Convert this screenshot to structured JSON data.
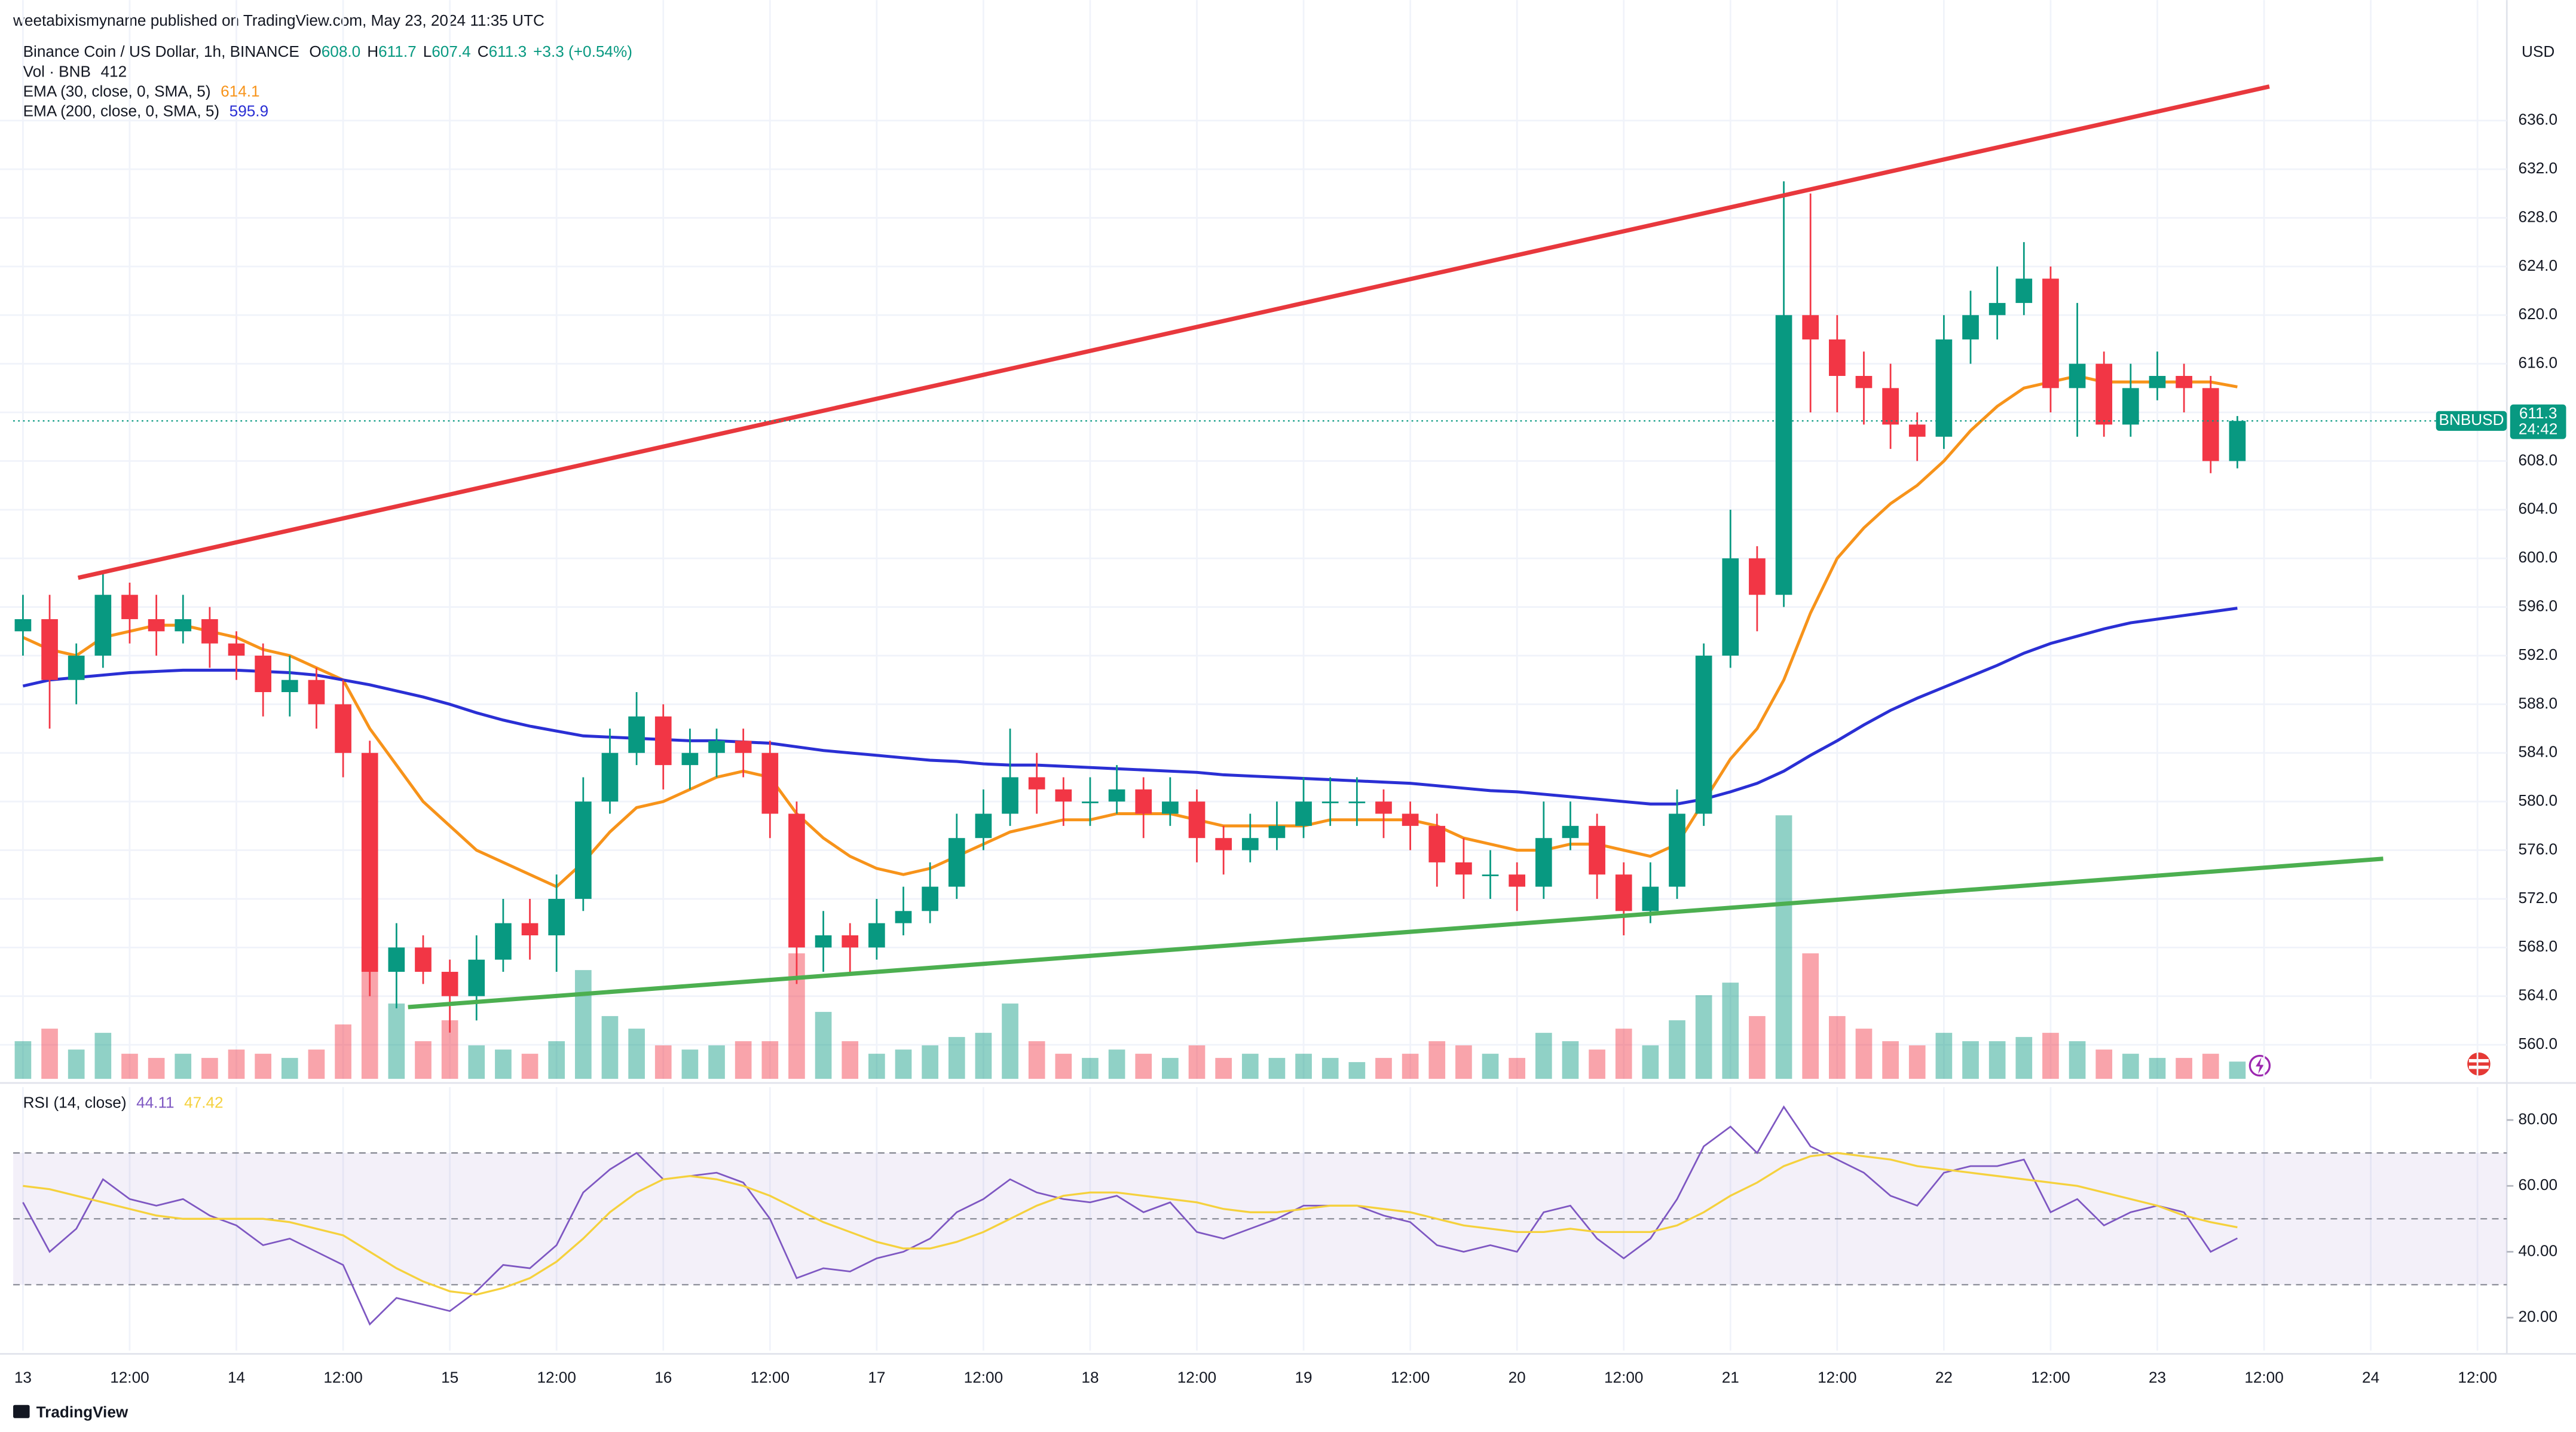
{
  "header": {
    "publisher": "weetabixismyname published on TradingView.com, May 23, 2024 11:35 UTC",
    "brand": "TradingView"
  },
  "chart_data": [
    {
      "type": "candlestick",
      "title": "Binance Coin / US Dollar, 1h, BINANCE",
      "ohlc": [
        {
          "label": "O",
          "value": "608.0"
        },
        {
          "label": "H",
          "value": "611.7"
        },
        {
          "label": "L",
          "value": "607.4"
        },
        {
          "label": "C",
          "value": "611.3"
        }
      ],
      "change": "+3.3 (+0.54%)",
      "y_axis_label": "USD",
      "grid": true,
      "up_color": "#089981",
      "down_color": "#f23645",
      "xlim": [
        -1.1,
        279.3
      ],
      "xticks": [
        {
          "value": 0,
          "label": "13"
        },
        {
          "value": 12,
          "label": "12:00"
        },
        {
          "value": 24,
          "label": "14"
        },
        {
          "value": 36,
          "label": "12:00"
        },
        {
          "value": 48,
          "label": "15"
        },
        {
          "value": 60,
          "label": "12:00"
        },
        {
          "value": 72,
          "label": "16"
        },
        {
          "value": 84,
          "label": "12:00"
        },
        {
          "value": 96,
          "label": "17"
        },
        {
          "value": 108,
          "label": "12:00"
        },
        {
          "value": 120,
          "label": "18"
        },
        {
          "value": 132,
          "label": "12:00"
        },
        {
          "value": 144,
          "label": "19"
        },
        {
          "value": 156,
          "label": "12:00"
        },
        {
          "value": 168,
          "label": "20"
        },
        {
          "value": 180,
          "label": "12:00"
        },
        {
          "value": 192,
          "label": "21"
        },
        {
          "value": 204,
          "label": "12:00"
        },
        {
          "value": 216,
          "label": "22"
        },
        {
          "value": 228,
          "label": "12:00"
        },
        {
          "value": 240,
          "label": "23"
        },
        {
          "value": 252,
          "label": "12:00"
        },
        {
          "value": 264,
          "label": "24"
        },
        {
          "value": 276,
          "label": "12:00"
        }
      ],
      "ylim": [
        557.2,
        643.2
      ],
      "yticks": [
        {
          "value": 560,
          "label": "560.0"
        },
        {
          "value": 564,
          "label": "564.0"
        },
        {
          "value": 568,
          "label": "568.0"
        },
        {
          "value": 572,
          "label": "572.0"
        },
        {
          "value": 576,
          "label": "576.0"
        },
        {
          "value": 580,
          "label": "580.0"
        },
        {
          "value": 584,
          "label": "584.0"
        },
        {
          "value": 588,
          "label": "588.0"
        },
        {
          "value": 592,
          "label": "592.0"
        },
        {
          "value": 596,
          "label": "596.0"
        },
        {
          "value": 600,
          "label": "600.0"
        },
        {
          "value": 604,
          "label": "604.0"
        },
        {
          "value": 608,
          "label": "608.0"
        },
        {
          "value": 612,
          "label": "612.0"
        },
        {
          "value": 616,
          "label": "616.0"
        },
        {
          "value": 620,
          "label": "620.0"
        },
        {
          "value": 624,
          "label": "624.0"
        },
        {
          "value": 628,
          "label": "628.0"
        },
        {
          "value": 632,
          "label": "632.0"
        },
        {
          "value": 636,
          "label": "636.0"
        }
      ],
      "x": [
        0,
        3,
        6,
        9,
        12,
        15,
        18,
        21,
        24,
        27,
        30,
        33,
        36,
        39,
        42,
        45,
        48,
        51,
        54,
        57,
        60,
        63,
        66,
        69,
        72,
        75,
        78,
        81,
        84,
        87,
        90,
        93,
        96,
        99,
        102,
        105,
        108,
        111,
        114,
        117,
        120,
        123,
        126,
        129,
        132,
        135,
        138,
        141,
        144,
        147,
        150,
        153,
        156,
        159,
        162,
        165,
        168,
        171,
        174,
        177,
        180,
        183,
        186,
        189,
        192,
        195,
        198,
        201,
        204,
        207,
        210,
        213,
        216,
        219,
        222,
        225,
        228,
        231,
        234,
        237,
        240,
        243,
        246,
        249
      ],
      "open": [
        594,
        595,
        590,
        592,
        597,
        595,
        594,
        595,
        593,
        592,
        589,
        590,
        588,
        584,
        566,
        568,
        566,
        564,
        567,
        570,
        569,
        572,
        580,
        584,
        587,
        583,
        584,
        585,
        584,
        579,
        568,
        569,
        568,
        570,
        571,
        573,
        577,
        579,
        582,
        581,
        580,
        580,
        581,
        579,
        580,
        577,
        576,
        577,
        578,
        580,
        580,
        580,
        579,
        578,
        575,
        574,
        574,
        573,
        577,
        578,
        574,
        571,
        573,
        579,
        592,
        600,
        597,
        620,
        618,
        615,
        614,
        611,
        610,
        618,
        620,
        621,
        623,
        614,
        616,
        611,
        614,
        615,
        614,
        608
      ],
      "high": [
        597,
        597,
        593,
        599,
        598,
        597,
        597,
        596,
        594,
        593,
        592,
        591,
        590,
        585,
        570,
        569,
        567,
        569,
        572,
        572,
        574,
        582,
        586,
        589,
        588,
        586,
        586,
        586,
        585,
        580,
        571,
        570,
        572,
        573,
        575,
        579,
        581,
        586,
        584,
        582,
        582,
        583,
        582,
        582,
        581,
        578,
        579,
        580,
        582,
        582,
        582,
        581,
        580,
        579,
        577,
        576,
        575,
        580,
        580,
        579,
        575,
        575,
        581,
        593,
        604,
        601,
        631,
        630,
        620,
        617,
        616,
        612,
        620,
        622,
        624,
        626,
        624,
        621,
        617,
        616,
        617,
        616,
        615,
        611.7
      ],
      "low": [
        592,
        586,
        588,
        591,
        593,
        592,
        593,
        591,
        590,
        587,
        587,
        586,
        582,
        564,
        563,
        565,
        561,
        562,
        566,
        567,
        566,
        571,
        579,
        583,
        581,
        581,
        582,
        582,
        577,
        565,
        566,
        566,
        567,
        569,
        570,
        572,
        576,
        578,
        579,
        578,
        578,
        579,
        577,
        578,
        575,
        574,
        575,
        576,
        577,
        578,
        578,
        577,
        576,
        573,
        572,
        572,
        571,
        572,
        576,
        572,
        569,
        570,
        572,
        578,
        591,
        594,
        596,
        612,
        612,
        611,
        609,
        608,
        609,
        616,
        618,
        620,
        612,
        610,
        610,
        610,
        613,
        612,
        607,
        607.4
      ],
      "close": [
        595,
        590,
        592,
        597,
        595,
        594,
        595,
        593,
        592,
        589,
        590,
        588,
        584,
        566,
        568,
        566,
        564,
        567,
        570,
        569,
        572,
        580,
        584,
        587,
        583,
        584,
        585,
        584,
        579,
        568,
        569,
        568,
        570,
        571,
        573,
        577,
        579,
        582,
        581,
        580,
        580,
        581,
        579,
        580,
        577,
        576,
        577,
        578,
        580,
        580,
        580,
        579,
        578,
        575,
        574,
        574,
        573,
        577,
        578,
        574,
        571,
        573,
        579,
        592,
        600,
        597,
        620,
        618,
        615,
        614,
        611,
        610,
        618,
        620,
        621,
        623,
        614,
        616,
        611,
        614,
        615,
        614,
        608,
        611.3
      ],
      "volume": {
        "name": "Vol · BNB",
        "value_label": "412",
        "values": [
          900,
          1200,
          700,
          1100,
          600,
          500,
          600,
          500,
          700,
          600,
          500,
          700,
          1300,
          3300,
          1800,
          900,
          1400,
          800,
          700,
          600,
          900,
          2600,
          1500,
          1200,
          800,
          700,
          800,
          900,
          900,
          3000,
          1600,
          900,
          600,
          700,
          800,
          1000,
          1100,
          1800,
          900,
          600,
          500,
          700,
          600,
          500,
          800,
          500,
          600,
          500,
          600,
          500,
          400,
          500,
          600,
          900,
          800,
          600,
          500,
          1100,
          900,
          700,
          1200,
          800,
          1400,
          2000,
          2300,
          1500,
          6300,
          3000,
          1500,
          1200,
          900,
          800,
          1100,
          900,
          900,
          1000,
          1100,
          900,
          700,
          600,
          500,
          500,
          600,
          412
        ]
      },
      "series": [
        {
          "name": "EMA (30, close, 0, SMA, 5)",
          "value_label": "614.1",
          "color": "#f7931a",
          "values": [
            593.5,
            592.5,
            592,
            593.5,
            594,
            594.5,
            594.5,
            594,
            593.5,
            592.5,
            592,
            591,
            590,
            586,
            583,
            580,
            578,
            576,
            575,
            574,
            573,
            575,
            577.5,
            579.5,
            580,
            581,
            582,
            582.5,
            582,
            579,
            577,
            575.5,
            574.5,
            574,
            574.5,
            575.5,
            576.5,
            577.5,
            578,
            578.5,
            578.5,
            579,
            579,
            579,
            578.5,
            578,
            578,
            578,
            578,
            578.5,
            578.5,
            578.5,
            578.5,
            578,
            577,
            576.5,
            576,
            576,
            576.5,
            576.5,
            576,
            575.5,
            576.5,
            580,
            583.5,
            586,
            590,
            595.5,
            600,
            602.5,
            604.5,
            606,
            608,
            610.5,
            612.5,
            614,
            614.5,
            615,
            614.5,
            614.5,
            614.5,
            614.5,
            614.5,
            614.1
          ]
        },
        {
          "name": "EMA (200, close, 0, SMA, 5)",
          "value_label": "595.9",
          "color": "#2a2fd4",
          "values": [
            589.5,
            590,
            590.2,
            590.4,
            590.6,
            590.7,
            590.8,
            590.8,
            590.8,
            590.7,
            590.6,
            590.4,
            590,
            589.6,
            589.1,
            588.6,
            588,
            587.3,
            586.7,
            586.2,
            585.8,
            585.4,
            585.3,
            585.2,
            585.1,
            585,
            585,
            584.9,
            584.8,
            584.5,
            584.2,
            584,
            583.8,
            583.6,
            583.4,
            583.3,
            583.1,
            583,
            583,
            582.9,
            582.8,
            582.7,
            582.6,
            582.5,
            582.4,
            582.2,
            582.1,
            582,
            581.9,
            581.8,
            581.7,
            581.6,
            581.5,
            581.3,
            581.1,
            580.9,
            580.8,
            580.6,
            580.4,
            580.2,
            580,
            579.8,
            579.8,
            580.2,
            580.8,
            581.5,
            582.5,
            583.8,
            585,
            586.3,
            587.5,
            588.5,
            589.4,
            590.3,
            591.2,
            592.2,
            593,
            593.6,
            594.2,
            594.7,
            595,
            595.3,
            595.6,
            595.9
          ]
        }
      ],
      "trendlines": [
        {
          "color": "#e8383d",
          "x": [
            6.2,
            252.6
          ],
          "values": [
            598.4,
            638.8
          ]
        },
        {
          "color": "#4caf50",
          "x": [
            43.3,
            265.4
          ],
          "values": [
            563.1,
            575.3
          ]
        }
      ],
      "price_tag": {
        "symbol": "BNBUSD",
        "price": "611.3",
        "countdown": "24:42"
      }
    },
    {
      "type": "line",
      "title": "RSI (14, close)",
      "ylim": [
        10,
        90
      ],
      "yticks": [
        {
          "value": 20,
          "label": "20.00"
        },
        {
          "value": 40,
          "label": "40.00"
        },
        {
          "value": 60,
          "label": "60.00"
        },
        {
          "value": 80,
          "label": "80.00"
        }
      ],
      "bands": [
        70,
        50,
        30
      ],
      "band_color": "#7e57c2",
      "series": [
        {
          "value_label": "44.11",
          "color": "#7e57c2",
          "values": [
            55,
            40,
            47,
            62,
            56,
            54,
            56,
            51,
            48,
            42,
            44,
            40,
            36,
            18,
            26,
            24,
            22,
            28,
            36,
            35,
            42,
            58,
            65,
            70,
            62,
            63,
            64,
            61,
            50,
            32,
            35,
            34,
            38,
            40,
            44,
            52,
            56,
            62,
            58,
            56,
            55,
            57,
            52,
            55,
            46,
            44,
            47,
            50,
            54,
            54,
            54,
            51,
            49,
            42,
            40,
            42,
            40,
            52,
            54,
            44,
            38,
            44,
            56,
            72,
            78,
            70,
            84,
            72,
            68,
            64,
            57,
            54,
            64,
            66,
            66,
            68,
            52,
            56,
            48,
            52,
            54,
            52,
            40,
            44.11
          ]
        },
        {
          "value_label": "47.42",
          "color": "#f5d13d",
          "values": [
            60,
            59,
            57,
            55,
            53,
            51,
            50,
            50,
            50,
            50,
            49,
            47,
            45,
            40,
            35,
            31,
            28,
            27,
            29,
            32,
            37,
            44,
            52,
            58,
            62,
            63,
            62,
            60,
            57,
            53,
            49,
            46,
            43,
            41,
            41,
            43,
            46,
            50,
            54,
            57,
            58,
            58,
            57,
            56,
            55,
            53,
            52,
            52,
            53,
            54,
            54,
            53,
            52,
            50,
            48,
            47,
            46,
            46,
            47,
            46,
            46,
            46,
            48,
            52,
            57,
            61,
            66,
            69,
            70,
            69,
            68,
            66,
            65,
            64,
            63,
            62,
            61,
            60,
            58,
            56,
            54,
            51,
            49,
            47.42
          ]
        }
      ]
    }
  ]
}
